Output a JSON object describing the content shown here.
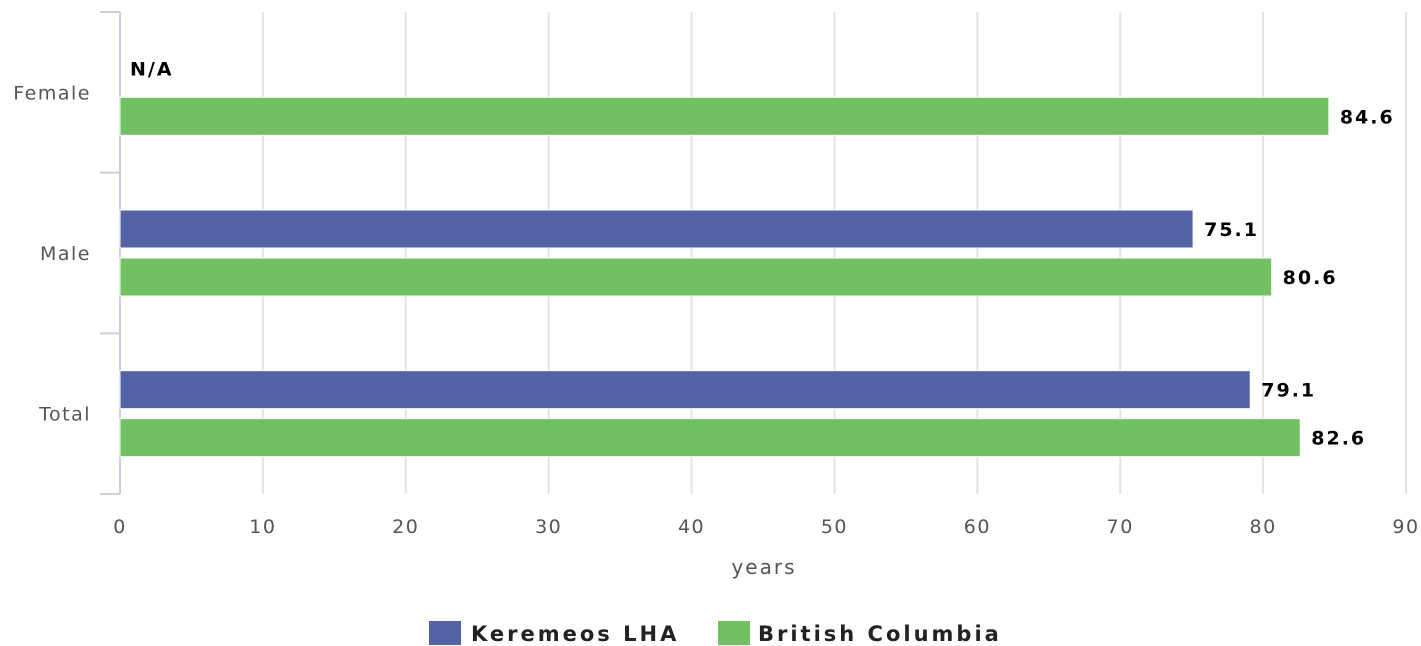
{
  "chart_data": {
    "type": "bar",
    "orientation": "horizontal",
    "categories": [
      "Female",
      "Male",
      "Total"
    ],
    "series": [
      {
        "name": "Keremeos LHA",
        "color": "#5463a6",
        "values": [
          null,
          75.1,
          79.1
        ],
        "labels": [
          "N/A",
          "75.1",
          "79.1"
        ]
      },
      {
        "name": "British Columbia",
        "color": "#72c063",
        "values": [
          84.6,
          80.6,
          82.6
        ],
        "labels": [
          "84.6",
          "80.6",
          "82.6"
        ]
      }
    ],
    "xlabel": "years",
    "xlim": [
      0,
      90
    ],
    "xticks": [
      "0",
      "10",
      "20",
      "30",
      "40",
      "50",
      "60",
      "70",
      "80",
      "90"
    ],
    "grid": true,
    "legend_position": "bottom-center"
  }
}
